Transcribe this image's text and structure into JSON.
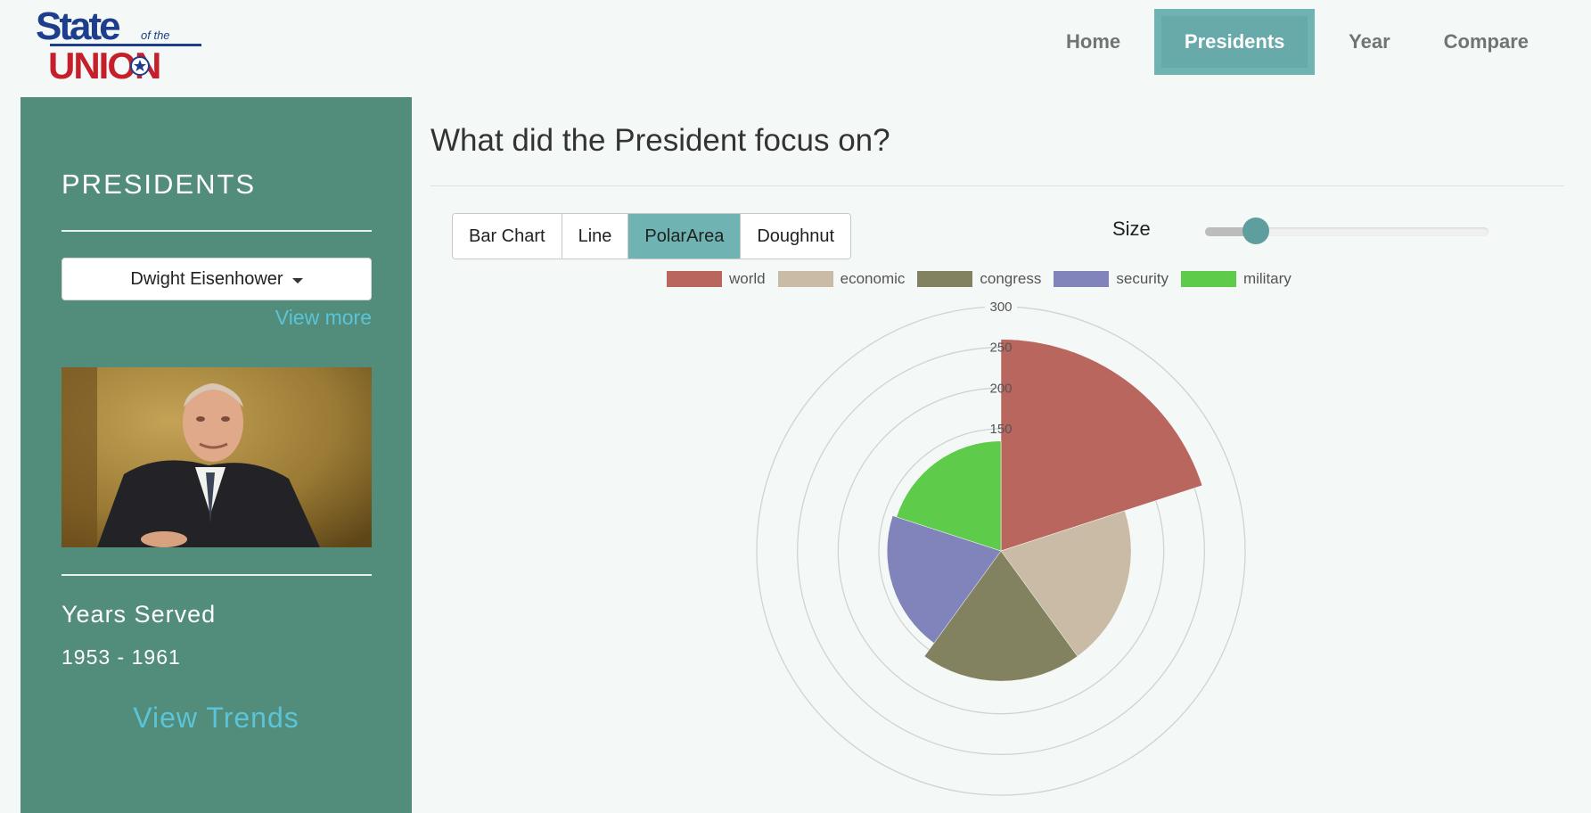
{
  "logo": {
    "line1": "State",
    "line2": "of the",
    "line3": "UNION"
  },
  "nav": {
    "items": [
      {
        "label": "Home",
        "active": false
      },
      {
        "label": "Presidents",
        "active": true
      },
      {
        "label": "Year",
        "active": false
      },
      {
        "label": "Compare",
        "active": false
      }
    ]
  },
  "sidebar": {
    "title": "PRESIDENTS",
    "selected_president": "Dwight Eisenhower",
    "view_more": "View more",
    "years_label": "Years Served",
    "years_value": "1953 - 1961",
    "view_trends": "View Trends"
  },
  "main": {
    "title": "What did the President focus on?",
    "chart_types": [
      {
        "label": "Bar Chart",
        "active": false
      },
      {
        "label": "Line",
        "active": false
      },
      {
        "label": "PolarArea",
        "active": true
      },
      {
        "label": "Doughnut",
        "active": false
      }
    ],
    "size_label": "Size",
    "size_value": 0.18
  },
  "colors": {
    "sidebar": "#528c7a",
    "accent": "#6fb3b3",
    "link": "#5bc4d8"
  },
  "chart_data": {
    "type": "polarArea",
    "r_ticks": [
      150,
      200,
      250,
      300
    ],
    "r_max": 300,
    "labels": [
      "world",
      "economic",
      "congress",
      "security",
      "military"
    ],
    "values": [
      260,
      160,
      160,
      140,
      135
    ],
    "colors": [
      "#b9665e",
      "#c9bba5",
      "#828261",
      "#8184ba",
      "#5fcb4a"
    ]
  }
}
